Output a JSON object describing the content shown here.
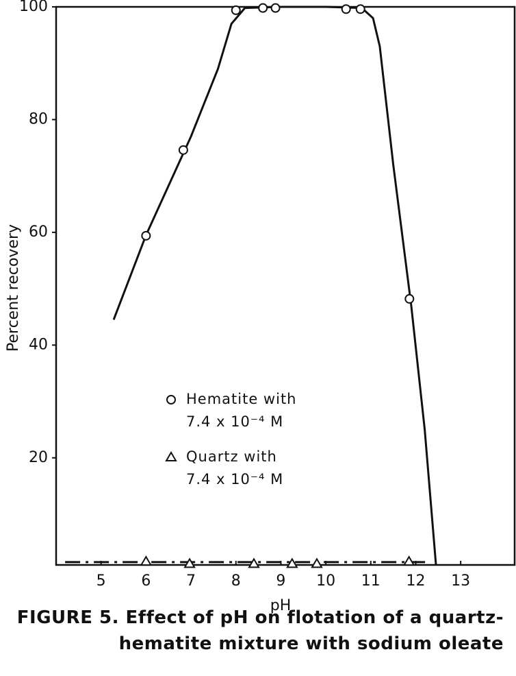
{
  "chart_data": {
    "type": "scatter",
    "xlabel": "pH",
    "ylabel": "Percent recovery",
    "caption": "FIGURE 5. Effect of pH on flotation of a quartz-\nhematite mixture with sodium oleate",
    "xlim": [
      4,
      14.2
    ],
    "ylim": [
      1,
      100
    ],
    "xticks": [
      5,
      6,
      7,
      8,
      9,
      10,
      11,
      12,
      13
    ],
    "yticks": [
      20,
      40,
      60,
      80,
      100
    ],
    "series": [
      {
        "name": "Hematite with\n7.4 x 10⁻⁴ M",
        "marker": "circle",
        "color": "#111111",
        "x": [
          6.0,
          6.83,
          8.0,
          8.6,
          8.88,
          10.45,
          10.77,
          11.86
        ],
        "values": [
          59.4,
          74.6,
          99.4,
          99.8,
          99.8,
          99.6,
          99.6,
          48.2
        ]
      },
      {
        "name": "Quartz with\n7.4 x 10⁻⁴ M",
        "marker": "triangle",
        "color": "#111111",
        "x": [
          6.0,
          6.97,
          8.4,
          9.25,
          9.8,
          11.85
        ],
        "values": [
          1.6,
          1.2,
          1.2,
          1.2,
          1.2,
          1.6
        ]
      }
    ],
    "curves": [
      {
        "dashed": false,
        "color": "#111111",
        "x": [
          5.28,
          6.0,
          7.0,
          7.6,
          7.9,
          8.2,
          9.0,
          10.0,
          10.8,
          11.05,
          11.2,
          11.5,
          11.9,
          12.2,
          12.45
        ],
        "values": [
          44.5,
          59.5,
          77,
          89,
          97,
          99.8,
          100,
          100,
          99.8,
          98,
          93,
          72,
          47,
          25,
          1
        ]
      },
      {
        "dashed": true,
        "color": "#111111",
        "x": [
          4.2,
          12.3
        ],
        "values": [
          1.5,
          1.5
        ]
      }
    ]
  }
}
